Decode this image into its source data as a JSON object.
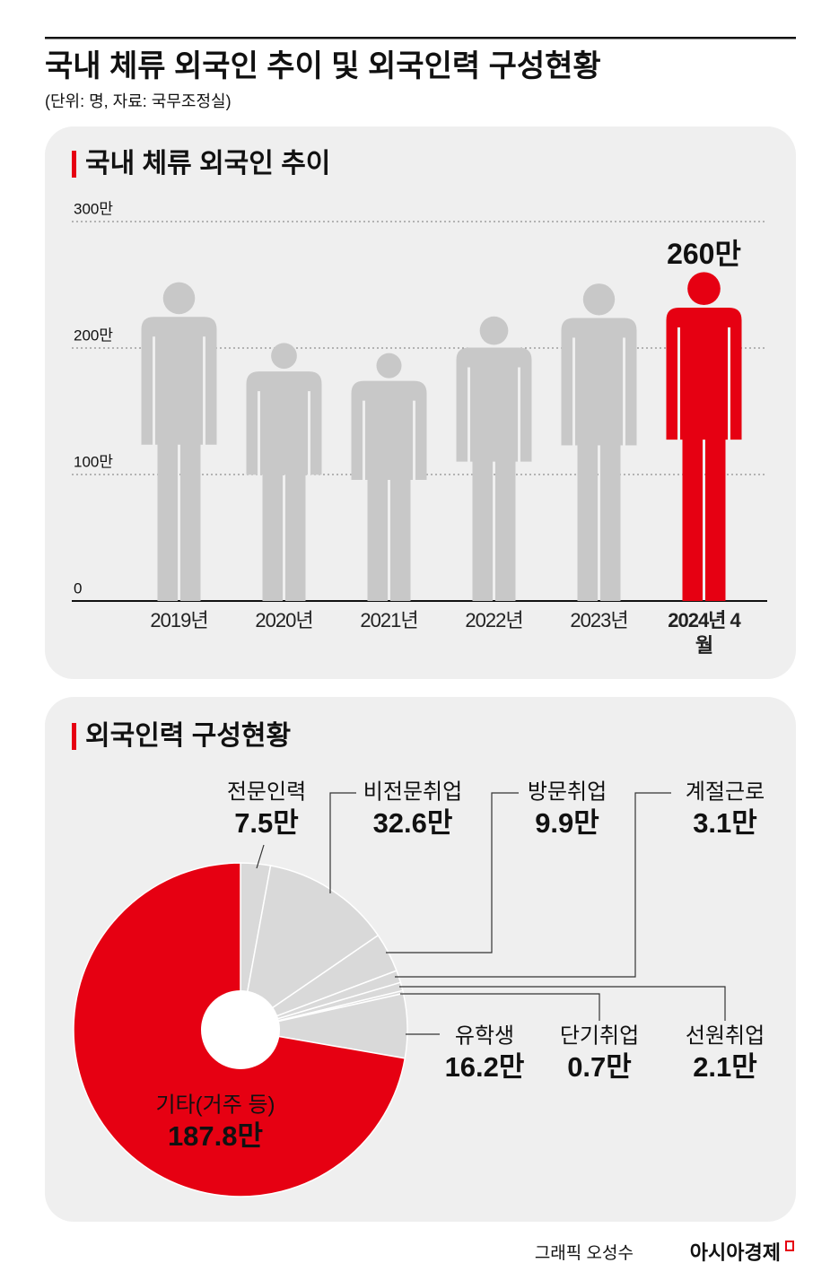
{
  "header": {
    "title": "국내 체류 외국인 추이 및 외국인력 구성현황",
    "subtitle": "(단위: 명, 자료: 국무조정실)"
  },
  "chart_data": [
    {
      "type": "bar",
      "title": "국내 체류 외국인 추이",
      "categories": [
        "2019년",
        "2020년",
        "2021년",
        "2022년",
        "2023년",
        "2024년 4월"
      ],
      "values": [
        252,
        204,
        196,
        225,
        251,
        260
      ],
      "value_labels": [
        null,
        null,
        null,
        null,
        null,
        "260만"
      ],
      "colors": [
        "#c8c8c8",
        "#c8c8c8",
        "#c8c8c8",
        "#c8c8c8",
        "#c8c8c8",
        "#e60012"
      ],
      "ylim": [
        0,
        300
      ],
      "yticks": [
        0,
        {
          "value": 100,
          "label": "100만"
        },
        {
          "value": 200,
          "label": "200만"
        },
        {
          "value": 300,
          "label": "300만"
        }
      ],
      "grid": true
    },
    {
      "type": "pie",
      "title": "외국인력 구성현황",
      "categories": [
        "전문인력",
        "비전문취업",
        "방문취업",
        "계절근로",
        "선원취업",
        "단기취업",
        "유학생",
        "기타(거주 등)"
      ],
      "values": [
        7.5,
        32.6,
        9.9,
        3.1,
        2.1,
        0.7,
        16.2,
        187.8
      ],
      "value_labels": [
        "7.5만",
        "32.6만",
        "9.9만",
        "3.1만",
        "2.1만",
        "0.7만",
        "16.2만",
        "187.8만"
      ],
      "colors": [
        "#d9d9d9",
        "#d9d9d9",
        "#d9d9d9",
        "#d9d9d9",
        "#d9d9d9",
        "#d9d9d9",
        "#d9d9d9",
        "#e60012"
      ]
    }
  ],
  "footer": {
    "credit": "그래픽 오성수",
    "brand": "아시아경제"
  }
}
